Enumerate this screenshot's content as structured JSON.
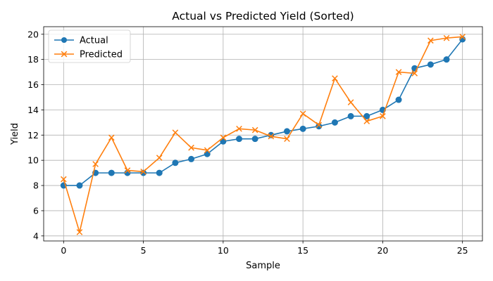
{
  "chart_data": {
    "type": "line",
    "title": "Actual vs Predicted Yield (Sorted)",
    "xlabel": "Sample",
    "ylabel": "Yield",
    "xlim": [
      -1.25,
      26.25
    ],
    "ylim": [
      3.6,
      20.6
    ],
    "xticks": [
      0,
      5,
      10,
      15,
      20,
      25
    ],
    "yticks": [
      4,
      6,
      8,
      10,
      12,
      14,
      16,
      18,
      20
    ],
    "grid": true,
    "legend_position": "upper-left",
    "x": [
      0,
      1,
      2,
      3,
      4,
      5,
      6,
      7,
      8,
      9,
      10,
      11,
      12,
      13,
      14,
      15,
      16,
      17,
      18,
      19,
      20,
      21,
      22,
      23,
      24,
      25
    ],
    "series": [
      {
        "name": "Actual",
        "color": "#1f77b4",
        "marker": "circle",
        "values": [
          8.0,
          8.0,
          9.0,
          9.0,
          9.0,
          9.0,
          9.0,
          9.8,
          10.1,
          10.5,
          11.5,
          11.7,
          11.7,
          12.0,
          12.3,
          12.5,
          12.7,
          13.0,
          13.5,
          13.5,
          14.0,
          14.8,
          17.3,
          17.6,
          18.0,
          19.6
        ]
      },
      {
        "name": "Predicted",
        "color": "#ff7f0e",
        "marker": "x",
        "values": [
          8.5,
          4.3,
          9.7,
          11.8,
          9.2,
          9.1,
          10.2,
          12.2,
          11.0,
          10.8,
          11.8,
          12.5,
          12.4,
          11.9,
          11.7,
          13.7,
          12.8,
          16.5,
          14.6,
          13.1,
          13.5,
          17.0,
          16.9,
          19.5,
          19.7,
          19.8
        ]
      }
    ]
  }
}
